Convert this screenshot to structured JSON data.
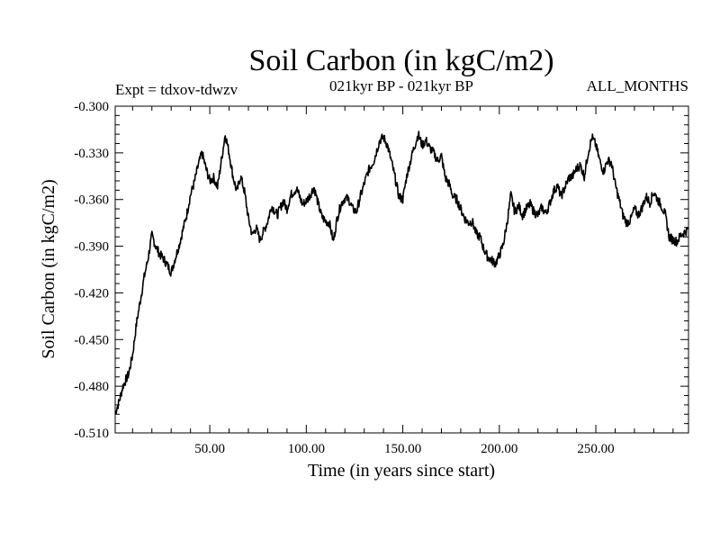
{
  "chart_data": {
    "type": "line",
    "title": "Soil Carbon (in kgC/m2)",
    "subtitle_left": "Expt = tdxov-tdwzv",
    "subtitle_center": "021kyr BP - 021kyr BP",
    "subtitle_right": "ALL_MONTHS",
    "xlabel": "Time (in years since start)",
    "ylabel": "Soil Carbon (in kgC/m2)",
    "xlim": [
      1,
      298
    ],
    "ylim": [
      -0.51,
      -0.3
    ],
    "x_ticks": [
      50,
      100,
      150,
      200,
      250
    ],
    "x_tick_labels": [
      "50.00",
      "100.00",
      "150.00",
      "200.00",
      "250.00"
    ],
    "y_ticks": [
      -0.51,
      -0.48,
      -0.45,
      -0.42,
      -0.39,
      -0.36,
      -0.33,
      -0.3
    ],
    "y_tick_labels": [
      "-0.510",
      "-0.480",
      "-0.450",
      "-0.420",
      "-0.390",
      "-0.360",
      "-0.330",
      "-0.300"
    ],
    "grid": false,
    "series": [
      {
        "x": [
          1,
          3,
          5,
          8,
          10,
          12,
          14,
          16,
          18,
          20,
          22,
          24,
          26,
          28,
          30,
          32,
          34,
          36,
          38,
          40,
          42,
          44,
          46,
          48,
          50,
          52,
          54,
          56,
          58,
          60,
          62,
          64,
          66,
          68,
          70,
          72,
          74,
          76,
          78,
          80,
          82,
          85,
          88,
          90,
          92,
          95,
          98,
          100,
          102,
          104,
          106,
          108,
          110,
          112,
          114,
          116,
          118,
          120,
          122,
          124,
          126,
          128,
          130,
          132,
          135,
          138,
          140,
          142,
          144,
          146,
          148,
          150,
          152,
          155,
          158,
          160,
          162,
          164,
          166,
          168,
          170,
          172,
          174,
          176,
          178,
          180,
          182,
          184,
          186,
          188,
          190,
          192,
          194,
          196,
          198,
          200,
          202,
          204,
          206,
          208,
          210,
          212,
          214,
          216,
          218,
          220,
          222,
          224,
          226,
          228,
          230,
          232,
          234,
          236,
          238,
          240,
          242,
          244,
          246,
          248,
          250,
          252,
          254,
          256,
          258,
          260,
          262,
          264,
          266,
          268,
          270,
          272,
          274,
          276,
          278,
          280,
          282,
          284,
          286,
          288,
          290,
          292,
          294,
          296,
          298
        ],
        "values": [
          -0.497,
          -0.49,
          -0.48,
          -0.472,
          -0.46,
          -0.44,
          -0.425,
          -0.41,
          -0.398,
          -0.383,
          -0.39,
          -0.395,
          -0.398,
          -0.402,
          -0.407,
          -0.398,
          -0.39,
          -0.38,
          -0.37,
          -0.357,
          -0.349,
          -0.338,
          -0.33,
          -0.34,
          -0.348,
          -0.346,
          -0.352,
          -0.335,
          -0.318,
          -0.33,
          -0.345,
          -0.355,
          -0.345,
          -0.355,
          -0.372,
          -0.383,
          -0.378,
          -0.386,
          -0.38,
          -0.374,
          -0.364,
          -0.37,
          -0.361,
          -0.366,
          -0.357,
          -0.353,
          -0.363,
          -0.361,
          -0.357,
          -0.352,
          -0.362,
          -0.371,
          -0.374,
          -0.375,
          -0.387,
          -0.372,
          -0.363,
          -0.359,
          -0.36,
          -0.366,
          -0.368,
          -0.358,
          -0.35,
          -0.342,
          -0.335,
          -0.322,
          -0.32,
          -0.325,
          -0.335,
          -0.346,
          -0.358,
          -0.36,
          -0.345,
          -0.33,
          -0.318,
          -0.325,
          -0.322,
          -0.327,
          -0.33,
          -0.335,
          -0.332,
          -0.346,
          -0.35,
          -0.358,
          -0.36,
          -0.366,
          -0.372,
          -0.375,
          -0.374,
          -0.382,
          -0.384,
          -0.392,
          -0.397,
          -0.399,
          -0.401,
          -0.396,
          -0.389,
          -0.375,
          -0.357,
          -0.368,
          -0.364,
          -0.37,
          -0.366,
          -0.363,
          -0.368,
          -0.37,
          -0.365,
          -0.369,
          -0.363,
          -0.355,
          -0.351,
          -0.358,
          -0.352,
          -0.346,
          -0.345,
          -0.34,
          -0.338,
          -0.345,
          -0.33,
          -0.32,
          -0.325,
          -0.335,
          -0.342,
          -0.335,
          -0.336,
          -0.35,
          -0.36,
          -0.37,
          -0.375,
          -0.373,
          -0.366,
          -0.37,
          -0.365,
          -0.358,
          -0.362,
          -0.355,
          -0.36,
          -0.364,
          -0.37,
          -0.384,
          -0.386,
          -0.387,
          -0.383,
          -0.381,
          -0.379
        ]
      }
    ]
  }
}
